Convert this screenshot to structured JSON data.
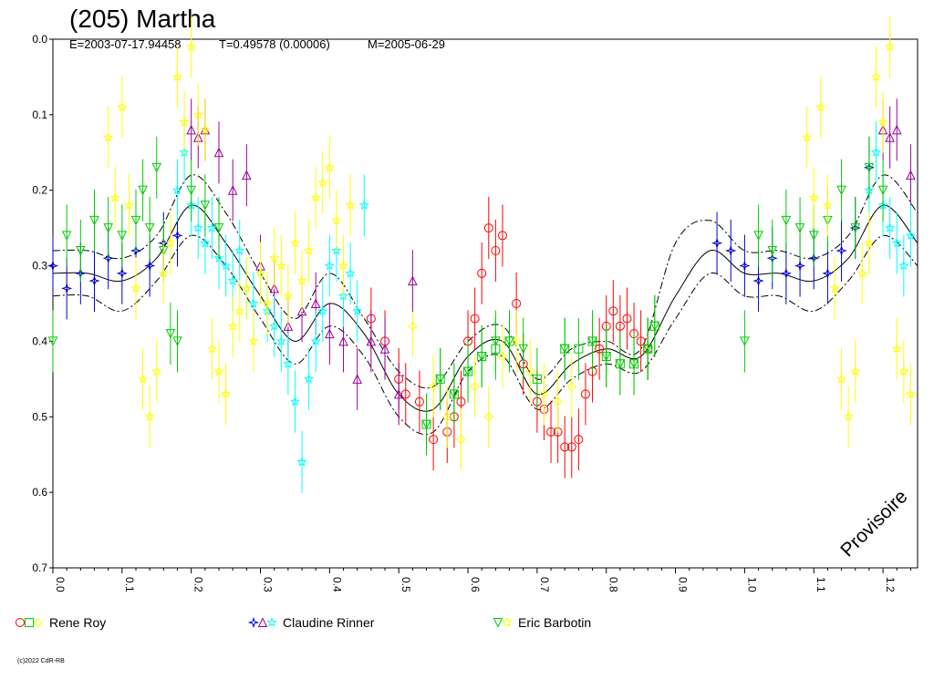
{
  "chart_data": {
    "type": "scatter",
    "title": "(205) Martha",
    "subtitle": {
      "epoch": "E=2003-07-17.94458",
      "period": "T=0.49578 (0.00006)",
      "mean_date": "M=2005-06-29"
    },
    "watermark": "Provisoire",
    "copyright": "(c)2022 CdR-RB",
    "x_axis": {
      "range": [
        0.0,
        1.25
      ],
      "ticks": [
        0.0,
        0.1,
        0.2,
        0.3,
        0.4,
        0.5,
        0.6,
        0.7,
        0.8,
        0.9,
        1.0,
        1.1,
        1.2
      ],
      "tick_labels": [
        "0.0",
        "0.1",
        "0.2",
        "0.3",
        "0.4",
        "0.5",
        "0.6",
        "0.7",
        "0.8",
        "0.9",
        "1.0",
        "1.1",
        "1.2"
      ]
    },
    "y_axis": {
      "range": [
        0.0,
        0.7
      ],
      "inverted": true,
      "ticks": [
        0.0,
        0.1,
        0.2,
        0.3,
        0.4,
        0.5,
        0.6,
        0.7
      ],
      "tick_labels": [
        "0.0",
        "0.1",
        "0.2",
        "0.3",
        "0.4",
        "0.5",
        "0.6",
        "0.7"
      ]
    },
    "legend": [
      {
        "name": "Rene Roy",
        "symbols": [
          "circle",
          "square",
          "diamond"
        ],
        "colors": [
          "#ff0000",
          "#00cc00",
          "#ffff00"
        ]
      },
      {
        "name": "Claudine Rinner",
        "symbols": [
          "star4",
          "triangle",
          "star"
        ],
        "colors": [
          "#0000cc",
          "#990099",
          "#00ffff"
        ]
      },
      {
        "name": "Eric Barbotin",
        "symbols": [
          "triangle-down",
          "star"
        ],
        "colors": [
          "#00cc00",
          "#ffff00"
        ]
      }
    ],
    "fit_curve": {
      "x": [
        0.0,
        0.05,
        0.1,
        0.15,
        0.2,
        0.25,
        0.3,
        0.35,
        0.4,
        0.45,
        0.5,
        0.55,
        0.6,
        0.65,
        0.7,
        0.75,
        0.8,
        0.85,
        0.9,
        0.95,
        1.0,
        1.05,
        1.1,
        1.15,
        1.2,
        1.25
      ],
      "y": [
        0.31,
        0.31,
        0.32,
        0.29,
        0.22,
        0.27,
        0.34,
        0.4,
        0.35,
        0.39,
        0.47,
        0.49,
        0.42,
        0.4,
        0.47,
        0.43,
        0.41,
        0.42,
        0.34,
        0.28,
        0.31,
        0.31,
        0.32,
        0.29,
        0.22,
        0.27
      ]
    },
    "fit_upper": {
      "x": [
        0.0,
        0.05,
        0.1,
        0.15,
        0.2,
        0.25,
        0.3,
        0.35,
        0.4,
        0.45,
        0.5,
        0.55,
        0.6,
        0.65,
        0.7,
        0.75,
        0.8,
        0.85,
        0.9,
        0.95,
        1.0,
        1.05,
        1.1,
        1.15,
        1.2,
        1.25
      ],
      "y": [
        0.28,
        0.28,
        0.29,
        0.26,
        0.18,
        0.23,
        0.31,
        0.37,
        0.31,
        0.37,
        0.44,
        0.46,
        0.4,
        0.38,
        0.45,
        0.41,
        0.4,
        0.41,
        0.27,
        0.24,
        0.28,
        0.28,
        0.29,
        0.26,
        0.18,
        0.23
      ]
    },
    "fit_lower": {
      "x": [
        0.0,
        0.05,
        0.1,
        0.15,
        0.2,
        0.25,
        0.3,
        0.35,
        0.4,
        0.45,
        0.5,
        0.55,
        0.6,
        0.65,
        0.7,
        0.75,
        0.8,
        0.85,
        0.9,
        0.95,
        1.0,
        1.05,
        1.1,
        1.15,
        1.2,
        1.25
      ],
      "y": [
        0.34,
        0.34,
        0.36,
        0.32,
        0.26,
        0.3,
        0.37,
        0.43,
        0.38,
        0.42,
        0.5,
        0.52,
        0.44,
        0.42,
        0.49,
        0.45,
        0.43,
        0.44,
        0.37,
        0.31,
        0.34,
        0.34,
        0.36,
        0.32,
        0.26,
        0.3
      ]
    },
    "series": [
      {
        "name": "Rene Roy",
        "marker": "circle",
        "color": "#ff0000",
        "x": [
          0.46,
          0.48,
          0.5,
          0.51,
          0.53,
          0.55,
          0.57,
          0.58,
          0.59,
          0.6,
          0.61,
          0.62,
          0.63,
          0.64,
          0.65,
          0.67,
          0.68,
          0.7,
          0.71,
          0.72,
          0.73,
          0.74,
          0.75,
          0.76,
          0.77,
          0.78,
          0.79,
          0.8,
          0.81,
          0.82,
          0.83,
          0.84,
          0.85,
          0.86
        ],
        "y": [
          0.37,
          0.4,
          0.45,
          0.47,
          0.48,
          0.53,
          0.52,
          0.5,
          0.48,
          0.4,
          0.37,
          0.31,
          0.25,
          0.28,
          0.26,
          0.35,
          0.43,
          0.48,
          0.49,
          0.52,
          0.52,
          0.54,
          0.54,
          0.53,
          0.47,
          0.44,
          0.41,
          0.38,
          0.36,
          0.38,
          0.37,
          0.39,
          0.4,
          0.41
        ]
      },
      {
        "name": "Rene Roy",
        "marker": "square",
        "color": "#00cc00",
        "x": [
          0.54,
          0.56,
          0.58,
          0.6,
          0.62,
          0.64,
          0.66,
          0.7,
          0.74,
          0.76,
          0.78,
          0.8,
          0.82,
          0.84,
          0.86,
          0.87
        ],
        "y": [
          0.51,
          0.45,
          0.47,
          0.44,
          0.42,
          0.41,
          0.4,
          0.45,
          0.41,
          0.41,
          0.4,
          0.42,
          0.43,
          0.43,
          0.41,
          0.38
        ]
      },
      {
        "name": "Rene Roy",
        "marker": "diamond",
        "color": "#ffff00",
        "x": [
          0.52,
          0.55,
          0.57,
          0.59,
          0.61,
          0.63,
          0.65,
          0.67,
          0.69,
          0.71,
          0.73,
          0.75
        ],
        "y": [
          0.38,
          0.46,
          0.5,
          0.53,
          0.46,
          0.5,
          0.42,
          0.4,
          0.44,
          0.47,
          0.48,
          0.46
        ]
      },
      {
        "name": "Claudine Rinner",
        "marker": "star4",
        "color": "#0000cc",
        "x": [
          0.0,
          0.02,
          0.04,
          0.06,
          0.08,
          0.1,
          0.12,
          0.14,
          0.16,
          0.18,
          0.96,
          0.98,
          1.0,
          1.02,
          1.04,
          1.06,
          1.08,
          1.1,
          1.12,
          1.14,
          1.16,
          1.18
        ],
        "y": [
          0.3,
          0.33,
          0.31,
          0.32,
          0.29,
          0.31,
          0.28,
          0.3,
          0.27,
          0.26,
          0.27,
          0.28,
          0.3,
          0.32,
          0.29,
          0.31,
          0.3,
          0.29,
          0.31,
          0.28,
          0.25,
          0.17
        ]
      },
      {
        "name": "Claudine Rinner",
        "marker": "triangle",
        "color": "#990099",
        "x": [
          0.2,
          0.21,
          0.22,
          0.24,
          0.26,
          0.28,
          0.3,
          0.32,
          0.34,
          0.36,
          0.38,
          0.4,
          0.42,
          0.44,
          0.46,
          0.48,
          0.5,
          0.52,
          1.2,
          1.21,
          1.22,
          1.24
        ],
        "y": [
          0.12,
          0.13,
          0.12,
          0.15,
          0.2,
          0.18,
          0.3,
          0.33,
          0.38,
          0.36,
          0.35,
          0.39,
          0.4,
          0.45,
          0.4,
          0.41,
          0.47,
          0.32,
          0.12,
          0.13,
          0.12,
          0.18
        ]
      },
      {
        "name": "Claudine Rinner",
        "marker": "star",
        "color": "#00ffff",
        "x": [
          0.18,
          0.19,
          0.2,
          0.21,
          0.22,
          0.23,
          0.24,
          0.25,
          0.26,
          0.27,
          0.28,
          0.29,
          0.3,
          0.31,
          0.32,
          0.33,
          0.34,
          0.35,
          0.36,
          0.37,
          0.38,
          0.39,
          0.4,
          0.41,
          0.42,
          0.43,
          0.44,
          0.45,
          1.18,
          1.19,
          1.2,
          1.21,
          1.22,
          1.23,
          1.24
        ],
        "y": [
          0.2,
          0.15,
          0.22,
          0.25,
          0.27,
          0.25,
          0.29,
          0.3,
          0.32,
          0.28,
          0.33,
          0.35,
          0.31,
          0.36,
          0.38,
          0.4,
          0.43,
          0.48,
          0.56,
          0.45,
          0.4,
          0.36,
          0.3,
          0.28,
          0.34,
          0.31,
          0.36,
          0.22,
          0.2,
          0.15,
          0.22,
          0.25,
          0.27,
          0.3,
          0.26
        ]
      },
      {
        "name": "Eric Barbotin",
        "marker": "triangle-down",
        "color": "#00cc00",
        "x": [
          0.0,
          0.02,
          0.04,
          0.06,
          0.08,
          0.1,
          0.12,
          0.13,
          0.14,
          0.15,
          0.16,
          0.17,
          0.18,
          0.2,
          0.22,
          0.24,
          0.54,
          0.56,
          0.58,
          0.6,
          0.62,
          0.64,
          0.66,
          0.68,
          0.74,
          0.78,
          0.8,
          0.82,
          0.84,
          0.86,
          0.87,
          1.0,
          1.02,
          1.04,
          1.06,
          1.08,
          1.1,
          1.12,
          1.14,
          1.16,
          1.18,
          1.2
        ],
        "y": [
          0.4,
          0.26,
          0.28,
          0.24,
          0.25,
          0.26,
          0.24,
          0.2,
          0.25,
          0.17,
          0.28,
          0.39,
          0.4,
          0.2,
          0.22,
          0.25,
          0.51,
          0.45,
          0.47,
          0.44,
          0.42,
          0.4,
          0.4,
          0.41,
          0.41,
          0.4,
          0.42,
          0.43,
          0.43,
          0.41,
          0.38,
          0.4,
          0.26,
          0.28,
          0.24,
          0.25,
          0.26,
          0.24,
          0.2,
          0.25,
          0.17,
          0.2
        ]
      },
      {
        "name": "Eric Barbotin",
        "marker": "star",
        "color": "#ffff00",
        "x": [
          0.08,
          0.09,
          0.1,
          0.11,
          0.12,
          0.13,
          0.14,
          0.15,
          0.16,
          0.17,
          0.18,
          0.19,
          0.2,
          0.21,
          0.22,
          0.23,
          0.24,
          0.25,
          0.26,
          0.27,
          0.28,
          0.29,
          0.3,
          0.31,
          0.32,
          0.33,
          0.34,
          0.35,
          0.36,
          0.37,
          0.38,
          0.39,
          0.4,
          0.41,
          0.42,
          0.43,
          1.09,
          1.1,
          1.11,
          1.12,
          1.13,
          1.14,
          1.15,
          1.16,
          1.17,
          1.18,
          1.19,
          1.2,
          1.21,
          1.22,
          1.23,
          1.24
        ],
        "y": [
          0.13,
          0.21,
          0.09,
          0.22,
          0.33,
          0.45,
          0.5,
          0.44,
          0.31,
          0.27,
          0.05,
          0.11,
          0.01,
          0.1,
          0.12,
          0.41,
          0.44,
          0.47,
          0.38,
          0.36,
          0.33,
          0.4,
          0.31,
          0.35,
          0.29,
          0.3,
          0.34,
          0.27,
          0.32,
          0.28,
          0.21,
          0.19,
          0.17,
          0.24,
          0.3,
          0.22,
          0.13,
          0.21,
          0.09,
          0.22,
          0.33,
          0.45,
          0.5,
          0.44,
          0.31,
          0.27,
          0.05,
          0.11,
          0.01,
          0.41,
          0.44,
          0.47
        ]
      }
    ]
  }
}
